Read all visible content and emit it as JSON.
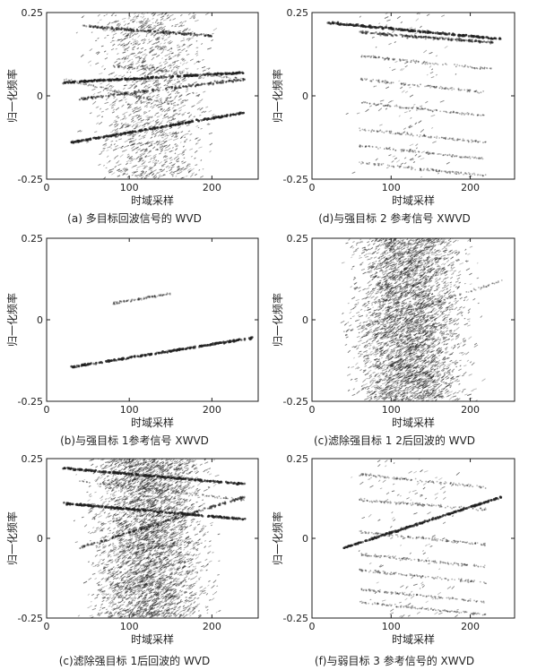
{
  "figure": {
    "background": "#ffffff",
    "ink_color": "#1e1e1e"
  },
  "chart_data": [
    {
      "id": "a",
      "type": "scatter",
      "caption": "(a) 多目标回波信号的 WVD",
      "xlabel": "时域采样",
      "ylabel": "归一化频率",
      "xlim": [
        0,
        256
      ],
      "ylim": [
        -0.25,
        0.25
      ],
      "xticks": [
        0,
        100,
        200
      ],
      "yticks": [
        {
          "value": 0.25,
          "label": "0.25"
        },
        {
          "value": 0,
          "label": "0"
        },
        {
          "value": -0.25,
          "label": "-0.25"
        }
      ],
      "grid": false,
      "series": [
        {
          "x": [
            30,
            240
          ],
          "y": [
            -0.14,
            -0.05
          ],
          "strength": "strong"
        },
        {
          "x": [
            20,
            240
          ],
          "y": [
            0.04,
            0.07
          ],
          "strength": "strong"
        },
        {
          "x": [
            40,
            240
          ],
          "y": [
            -0.01,
            0.05
          ],
          "strength": "medium"
        },
        {
          "x": [
            40,
            200
          ],
          "y": [
            0.21,
            0.18
          ],
          "strength": "medium"
        },
        {
          "x": [
            20,
            160
          ],
          "y": [
            0.05,
            -0.03
          ],
          "strength": "weak"
        },
        {
          "x": [
            80,
            240
          ],
          "y": [
            0.09,
            0.05
          ],
          "strength": "weak"
        }
      ],
      "noise_level": "high"
    },
    {
      "id": "d",
      "type": "scatter",
      "caption": "(d)与强目标 2 参考信号 XWVD",
      "xlabel": "时域采样",
      "ylabel": "归一化频率",
      "xlim": [
        0,
        256
      ],
      "ylim": [
        -0.25,
        0.25
      ],
      "xticks": [
        0,
        100,
        200
      ],
      "yticks": [
        {
          "value": 0.25,
          "label": "0.25"
        },
        {
          "value": 0,
          "label": "0"
        },
        {
          "value": -0.25,
          "label": "-0.25"
        }
      ],
      "grid": false,
      "series": [
        {
          "x": [
            20,
            240
          ],
          "y": [
            0.22,
            0.17
          ],
          "strength": "strong"
        },
        {
          "x": [
            60,
            230
          ],
          "y": [
            0.19,
            0.16
          ],
          "strength": "medium"
        },
        {
          "x": [
            60,
            230
          ],
          "y": [
            0.12,
            0.08
          ],
          "strength": "weak"
        },
        {
          "x": [
            60,
            220
          ],
          "y": [
            0.05,
            0.01
          ],
          "strength": "weak"
        },
        {
          "x": [
            60,
            220
          ],
          "y": [
            -0.02,
            -0.06
          ],
          "strength": "weak"
        },
        {
          "x": [
            60,
            220
          ],
          "y": [
            -0.1,
            -0.14
          ],
          "strength": "weak"
        },
        {
          "x": [
            60,
            220
          ],
          "y": [
            -0.15,
            -0.19
          ],
          "strength": "weak"
        },
        {
          "x": [
            60,
            220
          ],
          "y": [
            -0.2,
            -0.24
          ],
          "strength": "weak"
        }
      ],
      "noise_level": "low"
    },
    {
      "id": "b",
      "type": "scatter",
      "caption": "(b)与强目标 1参考信号 XWVD",
      "xlabel": "时域采样",
      "ylabel": "归一化频率",
      "xlim": [
        0,
        256
      ],
      "ylim": [
        -0.25,
        0.25
      ],
      "xticks": [
        0,
        100,
        200
      ],
      "yticks": [
        {
          "value": 0.25,
          "label": "0.25"
        },
        {
          "value": 0,
          "label": "0"
        },
        {
          "value": -0.25,
          "label": "-0.25"
        }
      ],
      "grid": false,
      "series": [
        {
          "x": [
            30,
            250
          ],
          "y": [
            -0.145,
            -0.055
          ],
          "strength": "strong"
        },
        {
          "x": [
            80,
            150
          ],
          "y": [
            0.05,
            0.08
          ],
          "strength": "weak"
        }
      ],
      "noise_level": "none"
    },
    {
      "id": "c",
      "type": "scatter",
      "caption": "(c)滤除强目标 1 2后回波的 WVD",
      "xlabel": "时域采样",
      "ylabel": "归一化频率",
      "xlim": [
        0,
        256
      ],
      "ylim": [
        -0.25,
        0.25
      ],
      "xticks": [
        0,
        100,
        200
      ],
      "yticks": [
        {
          "value": 0.25,
          "label": "0.25"
        },
        {
          "value": 0,
          "label": "0"
        },
        {
          "value": -0.25,
          "label": "-0.25"
        }
      ],
      "grid": false,
      "series": [
        {
          "x": [
            40,
            240
          ],
          "y": [
            -0.04,
            0.12
          ],
          "strength": "weak"
        }
      ],
      "noise_level": "very_high"
    },
    {
      "id": "e",
      "type": "scatter",
      "caption": "(c)滤除强目标 1后回波的 WVD",
      "xlabel": "时域采样",
      "ylabel": "归一化频率",
      "xlim": [
        0,
        256
      ],
      "ylim": [
        -0.25,
        0.25
      ],
      "xticks": [
        0,
        100,
        200
      ],
      "yticks": [
        {
          "value": 0.25,
          "label": "0.25"
        },
        {
          "value": 0,
          "label": "0"
        },
        {
          "value": -0.25,
          "label": "-0.25"
        }
      ],
      "grid": false,
      "series": [
        {
          "x": [
            20,
            240
          ],
          "y": [
            0.22,
            0.17
          ],
          "strength": "strong"
        },
        {
          "x": [
            20,
            240
          ],
          "y": [
            0.11,
            0.06
          ],
          "strength": "strong"
        },
        {
          "x": [
            40,
            240
          ],
          "y": [
            -0.03,
            0.13
          ],
          "strength": "medium"
        },
        {
          "x": [
            40,
            240
          ],
          "y": [
            0.18,
            0.12
          ],
          "strength": "weak"
        }
      ],
      "noise_level": "very_high"
    },
    {
      "id": "f",
      "type": "scatter",
      "caption": "(f)与弱目标 3 参考信号的 XWVD",
      "xlabel": "时域采样",
      "ylabel": "归一化频率",
      "xlim": [
        0,
        256
      ],
      "ylim": [
        -0.25,
        0.25
      ],
      "xticks": [
        0,
        100,
        200
      ],
      "yticks": [
        {
          "value": 0.25,
          "label": "0.25"
        },
        {
          "value": 0,
          "label": "0"
        },
        {
          "value": -0.25,
          "label": "-0.25"
        }
      ],
      "grid": false,
      "series": [
        {
          "x": [
            40,
            240
          ],
          "y": [
            -0.03,
            0.13
          ],
          "strength": "strong"
        },
        {
          "x": [
            60,
            220
          ],
          "y": [
            0.2,
            0.16
          ],
          "strength": "weak"
        },
        {
          "x": [
            60,
            220
          ],
          "y": [
            0.12,
            0.09
          ],
          "strength": "weak"
        },
        {
          "x": [
            60,
            220
          ],
          "y": [
            0.02,
            -0.02
          ],
          "strength": "weak"
        },
        {
          "x": [
            60,
            220
          ],
          "y": [
            -0.05,
            -0.09
          ],
          "strength": "weak"
        },
        {
          "x": [
            60,
            220
          ],
          "y": [
            -0.1,
            -0.14
          ],
          "strength": "weak"
        },
        {
          "x": [
            60,
            220
          ],
          "y": [
            -0.16,
            -0.2
          ],
          "strength": "weak"
        },
        {
          "x": [
            60,
            220
          ],
          "y": [
            -0.2,
            -0.24
          ],
          "strength": "weak"
        }
      ],
      "noise_level": "low"
    }
  ]
}
